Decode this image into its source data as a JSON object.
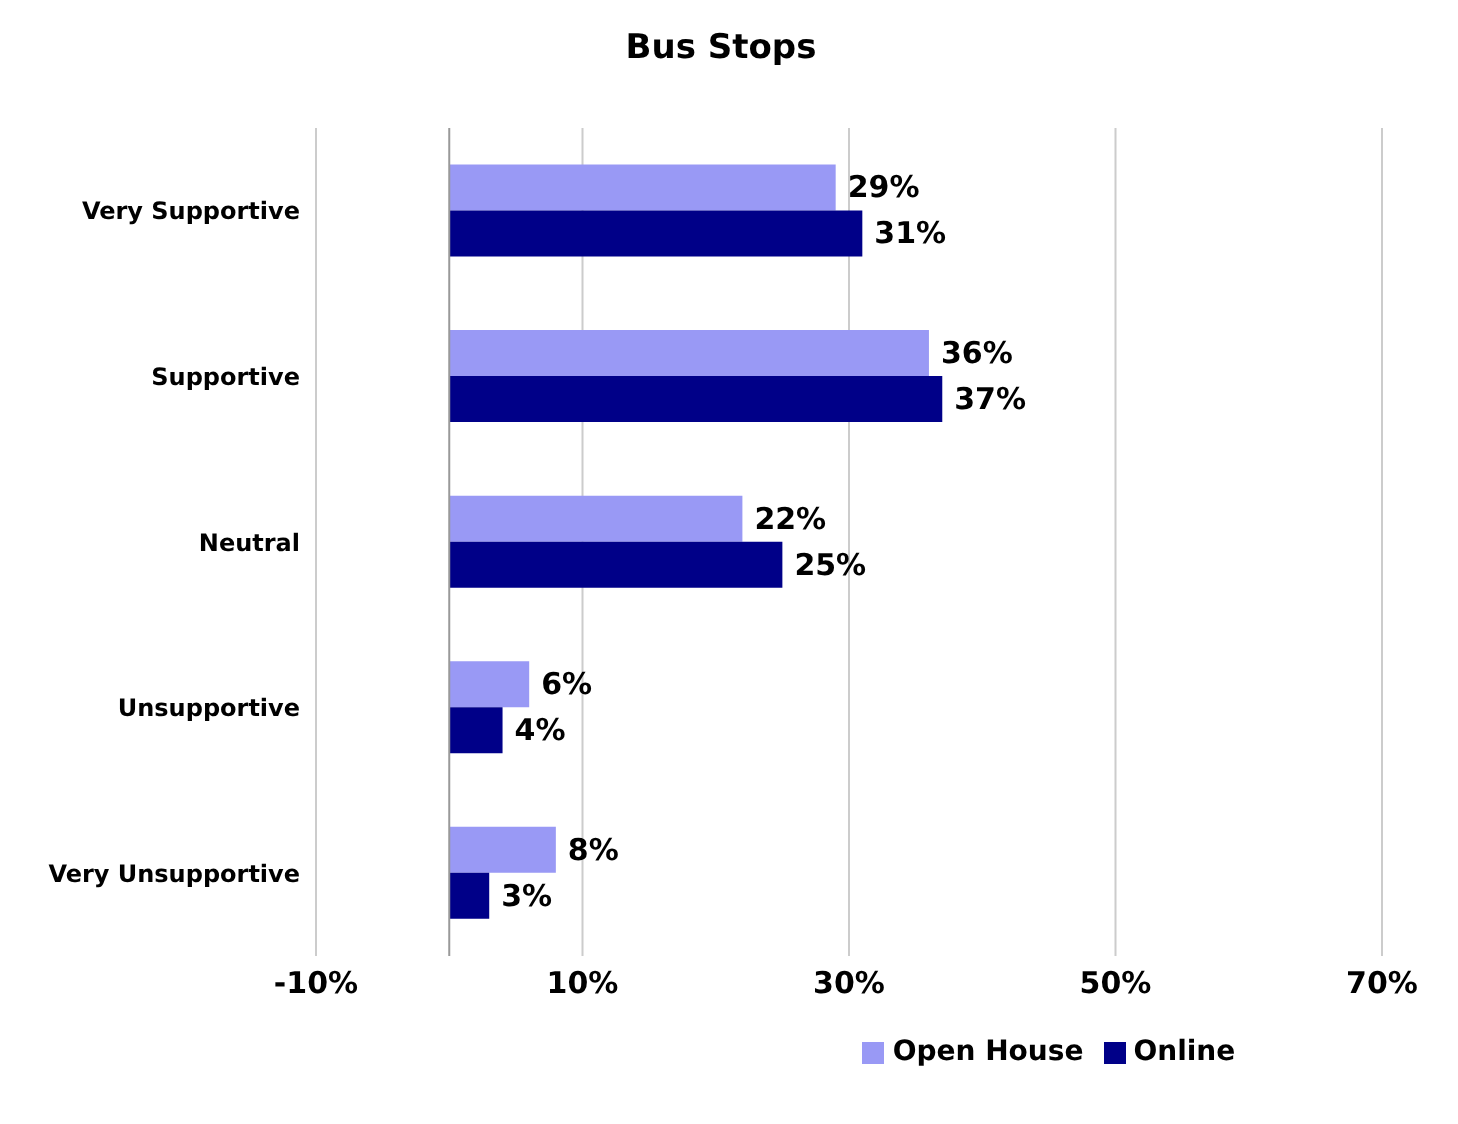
{
  "chart_data": {
    "type": "bar",
    "title": "Bus Stops",
    "orientation": "horizontal",
    "categories": [
      "Very Supportive",
      "Supportive",
      "Neutral",
      "Unsupportive",
      "Very Unsupportive"
    ],
    "series": [
      {
        "name": "Open House",
        "color": "#9999f5",
        "values": [
          29,
          36,
          22,
          6,
          8
        ],
        "value_labels": [
          "29%",
          "36%",
          "22%",
          "6%",
          "8%"
        ]
      },
      {
        "name": "Online",
        "color": "#000088",
        "values": [
          31,
          37,
          25,
          4,
          3
        ],
        "value_labels": [
          "31%",
          "37%",
          "25%",
          "4%",
          "3%"
        ]
      }
    ],
    "xlim": [
      -10,
      70
    ],
    "xticks": [
      {
        "value": -10,
        "label": "-10%"
      },
      {
        "value": 10,
        "label": "10%"
      },
      {
        "value": 30,
        "label": "30%"
      },
      {
        "value": 50,
        "label": "50%"
      },
      {
        "value": 70,
        "label": "70%"
      }
    ],
    "grid": "x",
    "legend": "bottom"
  }
}
